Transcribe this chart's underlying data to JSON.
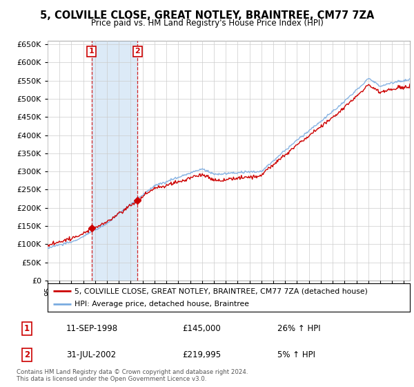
{
  "title": "5, COLVILLE CLOSE, GREAT NOTLEY, BRAINTREE, CM77 7ZA",
  "subtitle": "Price paid vs. HM Land Registry's House Price Index (HPI)",
  "property_label": "5, COLVILLE CLOSE, GREAT NOTLEY, BRAINTREE, CM77 7ZA (detached house)",
  "hpi_label": "HPI: Average price, detached house, Braintree",
  "transaction1_date": "11-SEP-1998",
  "transaction1_price": "£145,000",
  "transaction1_hpi": "26% ↑ HPI",
  "transaction2_date": "31-JUL-2002",
  "transaction2_price": "£219,995",
  "transaction2_hpi": "5% ↑ HPI",
  "footnote": "Contains HM Land Registry data © Crown copyright and database right 2024.\nThis data is licensed under the Open Government Licence v3.0.",
  "property_color": "#cc0000",
  "hpi_color": "#7aabe0",
  "shading_color": "#dceaf7",
  "transaction1_x": 1998.7,
  "transaction1_y": 145000,
  "transaction2_x": 2002.58,
  "transaction2_y": 219995,
  "ylim": [
    0,
    660000
  ],
  "xlim_start": 1995.0,
  "xlim_end": 2025.5,
  "background_color": "#ffffff",
  "grid_color": "#cccccc"
}
